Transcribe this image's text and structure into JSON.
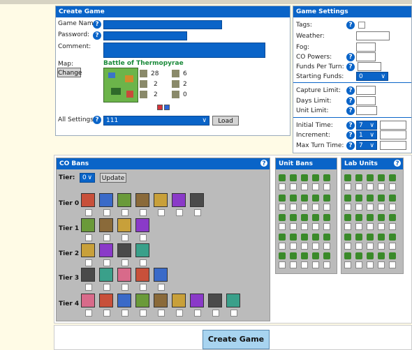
{
  "create_game": {
    "title": "Create Game",
    "game_name_label": "Game Name",
    "password_label": "Password:",
    "comment_label": "Comment:",
    "map_label": "Map:",
    "change_button": "Change",
    "map_name": "Battle of Thermopyrae",
    "map_stats": [
      "28",
      "6",
      "2",
      "2",
      "2",
      "0"
    ],
    "all_settings_label": "All Settings:",
    "all_settings_value": "111",
    "load_button": "Load"
  },
  "game_settings": {
    "title": "Game Settings",
    "tags_label": "Tags:",
    "weather_label": "Weather:",
    "fog_label": "Fog:",
    "co_powers_label": "CO Powers:",
    "funds_per_turn_label": "Funds Per Turn:",
    "starting_funds_label": "Starting Funds:",
    "starting_funds_value": "0",
    "capture_limit_label": "Capture Limit:",
    "days_limit_label": "Days Limit:",
    "unit_limit_label": "Unit Limit:",
    "initial_time_label": "Initial Time:",
    "initial_time_value": "7",
    "increment_label": "Increment:",
    "increment_value": "1",
    "max_turn_time_label": "Max Turn Time:",
    "max_turn_time_value": "7"
  },
  "co_bans": {
    "title": "CO Bans",
    "tier_label": "Tier:",
    "tier_value": "0",
    "update_button": "Update",
    "tiers": [
      {
        "label": "Tier 0",
        "count": 7
      },
      {
        "label": "Tier 1",
        "count": 4
      },
      {
        "label": "Tier 2",
        "count": 4
      },
      {
        "label": "Tier 3",
        "count": 5
      },
      {
        "label": "Tier 4",
        "count": 9
      }
    ]
  },
  "unit_bans": {
    "title": "Unit Bans"
  },
  "lab_units": {
    "title": "Lab Units"
  },
  "create_button": "Create Game",
  "colors": {
    "accent": "#0a64c8",
    "background": "#fffbe6",
    "gray_panel": "#bbbbbb"
  }
}
